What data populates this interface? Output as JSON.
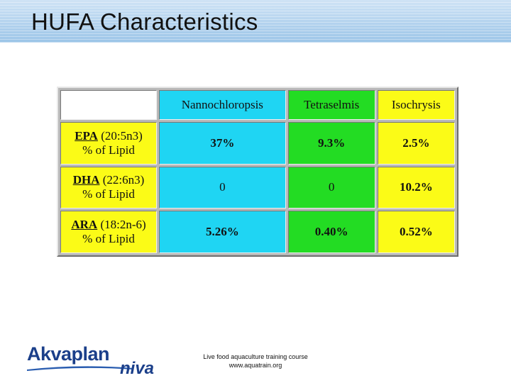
{
  "slide": {
    "title": "HUFA Characteristics"
  },
  "table": {
    "headers": [
      "Nannochloropsis",
      "Tetraselmis",
      "Isochrysis"
    ],
    "rows": [
      {
        "acid": "EPA",
        "formula": "(20:5n3)",
        "unit": "% of Lipid",
        "values": [
          "37%",
          "9.3%",
          "2.5%"
        ]
      },
      {
        "acid": "DHA",
        "formula": "(22:6n3)",
        "unit": "% of Lipid",
        "values": [
          "0",
          "0",
          "10.2%"
        ]
      },
      {
        "acid": "ARA",
        "formula": "(18:2n-6)",
        "unit": "% of Lipid",
        "values": [
          "5.26%",
          "0.40%",
          "0.52%"
        ]
      }
    ]
  },
  "footer": {
    "line1": "Live food aquaculture training course",
    "line2": "www.aquatrain.org"
  },
  "logo": {
    "part1": "Akvaplan",
    "part2": "niva",
    "color": "#1b3f8a"
  },
  "colors": {
    "nannochloropsis": "#1fd5f3",
    "tetraselmis": "#23dc23",
    "isochrysis": "#fbfb17"
  }
}
